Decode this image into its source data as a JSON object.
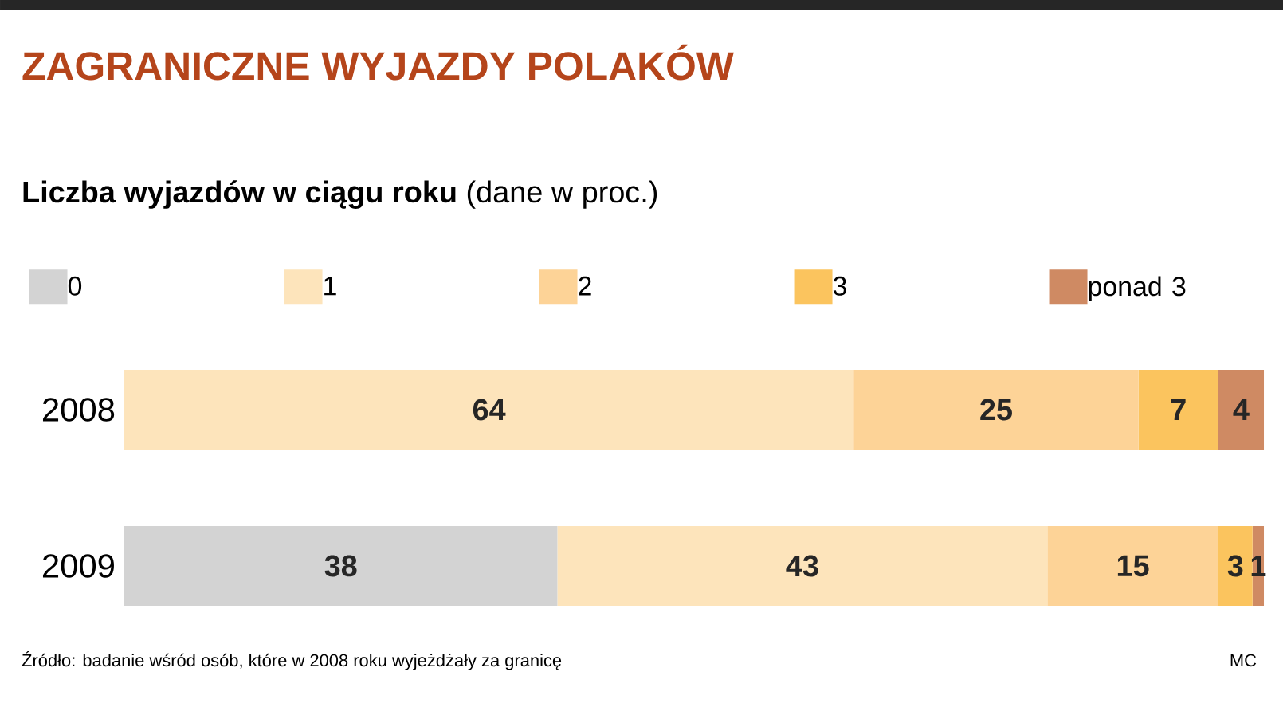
{
  "chart_data": {
    "type": "bar",
    "orientation": "horizontal",
    "stacked": true,
    "title": "ZAGRANICZNE WYJAZDY POLAKÓW",
    "subtitle": "**Liczba wyjazdów w ciągu roku** (dane w proc.)",
    "categories": [
      "2008",
      "2009"
    ],
    "series": [
      {
        "name": "0",
        "color": "#d3d3d3",
        "values": [
          null,
          38
        ]
      },
      {
        "name": "1",
        "color": "#fde4bb",
        "values": [
          64,
          43
        ]
      },
      {
        "name": "2",
        "color": "#fdd397",
        "values": [
          25,
          15
        ]
      },
      {
        "name": "3",
        "color": "#fbc45e",
        "values": [
          7,
          3
        ]
      },
      {
        "name": "ponad 3",
        "color": "#cf8a63",
        "values": [
          4,
          1
        ]
      }
    ],
    "data_labels": true,
    "legend": "top",
    "tick_labels": "y",
    "grid": false,
    "annotations": [
      "Źródło: badanie wśród osób, które w 2008 roku wyjeżdżały za granicę",
      "MC"
    ]
  }
}
